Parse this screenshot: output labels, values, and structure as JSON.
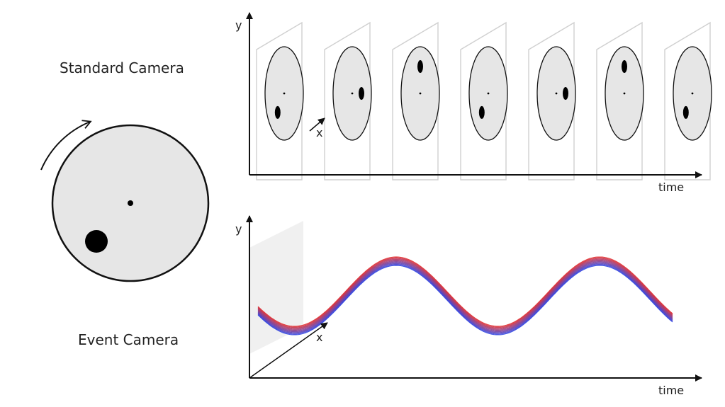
{
  "labels": {
    "standard_camera": "Standard Camera",
    "event_camera": "Event Camera"
  },
  "top_plot": {
    "y_label": "y",
    "x_label": "x",
    "time_label": "time"
  },
  "bottom_plot": {
    "y_label": "y",
    "x_label": "x",
    "time_label": "time"
  },
  "frames": {
    "count": 7,
    "dot_angles_deg": [
      225,
      0,
      90,
      225,
      0,
      90,
      225
    ]
  },
  "colors": {
    "disk_fill": "#e6e6e6",
    "frame_border": "#d0d0d0",
    "axis": "#111111",
    "event_positive": "#e01818",
    "event_negative": "#1830e0"
  }
}
